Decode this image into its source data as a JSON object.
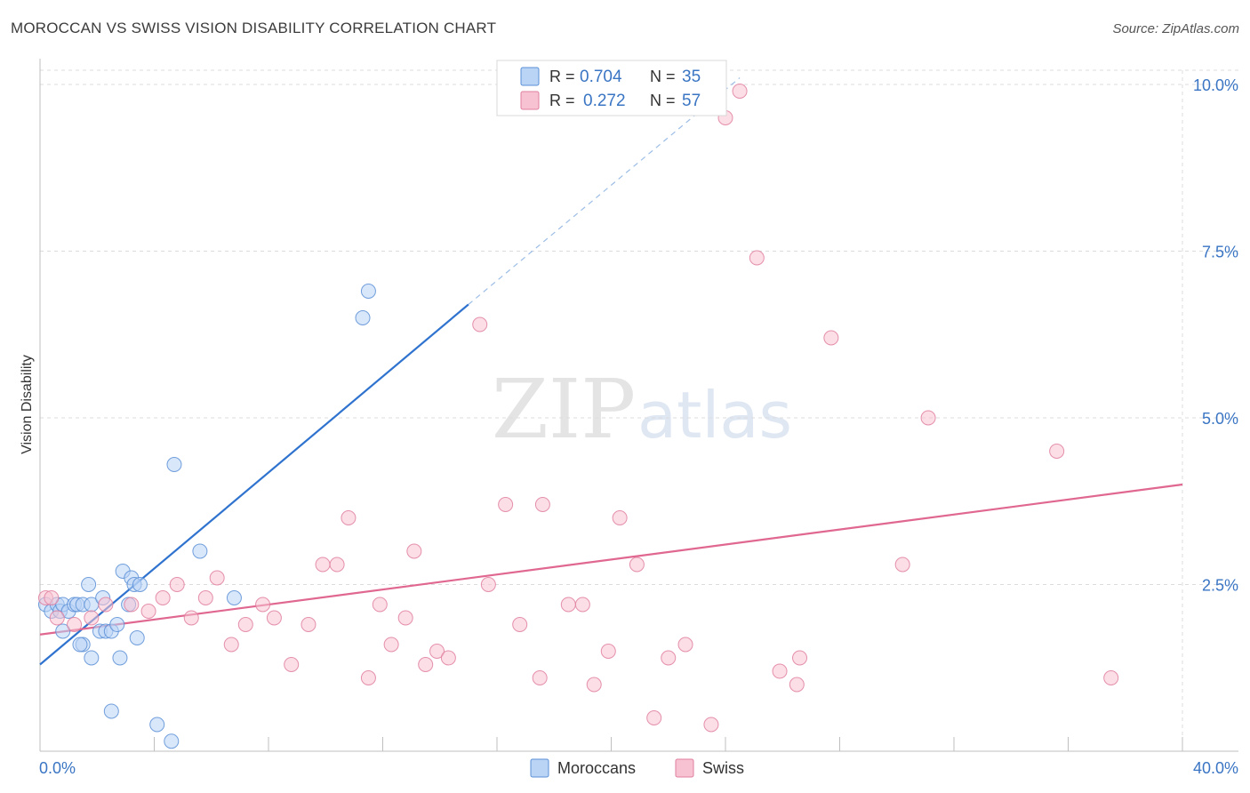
{
  "title": "MOROCCAN VS SWISS VISION DISABILITY CORRELATION CHART",
  "source": "Source: ZipAtlas.com",
  "watermark": {
    "zip": "ZIP",
    "atlas": "atlas"
  },
  "colors": {
    "moroccans_fill": "#b9d4f5",
    "moroccans_stroke": "#5b8fd6",
    "moroccans_line": "#2f73cf",
    "swiss_fill": "#f7c3d2",
    "swiss_stroke": "#e07f9f",
    "swiss_line": "#e0678f",
    "value_text": "#3a75c4"
  },
  "legend": {
    "rows": [
      {
        "r_label": "R =",
        "r_value": "0.704",
        "n_label": "N =",
        "n_value": "35"
      },
      {
        "r_label": "R =",
        "r_value": "0.272",
        "n_label": "N =",
        "n_value": "57"
      }
    ]
  },
  "bottom_legend": [
    "Moroccans",
    "Swiss"
  ],
  "chart_data": {
    "type": "scatter",
    "title": "MOROCCAN VS SWISS VISION DISABILITY CORRELATION CHART",
    "xlabel": "",
    "ylabel": "Vision Disability",
    "xlim": [
      0,
      40
    ],
    "ylim": [
      0,
      10
    ],
    "x_tick_labels": [
      "0.0%",
      "40.0%"
    ],
    "y_ticks": [
      2.5,
      5.0,
      7.5,
      10.0
    ],
    "y_tick_labels": [
      "2.5%",
      "5.0%",
      "7.5%",
      "10.0%"
    ],
    "grid": true,
    "legend_position": "top-center",
    "series": [
      {
        "name": "Moroccans",
        "r": 0.704,
        "n": 35,
        "trend": {
          "x": [
            0,
            15
          ],
          "y": [
            1.3,
            6.7
          ],
          "dashed_to": {
            "x": 24.5,
            "y": 10.1
          }
        },
        "points": [
          [
            0.2,
            2.2
          ],
          [
            0.4,
            2.1
          ],
          [
            0.6,
            2.2
          ],
          [
            0.7,
            2.1
          ],
          [
            0.8,
            2.2
          ],
          [
            1.0,
            2.1
          ],
          [
            1.2,
            2.2
          ],
          [
            1.3,
            2.2
          ],
          [
            1.5,
            2.2
          ],
          [
            0.8,
            1.8
          ],
          [
            1.5,
            1.6
          ],
          [
            1.4,
            1.6
          ],
          [
            1.8,
            1.4
          ],
          [
            1.7,
            2.5
          ],
          [
            1.8,
            2.2
          ],
          [
            2.1,
            1.8
          ],
          [
            2.2,
            2.3
          ],
          [
            2.3,
            1.8
          ],
          [
            2.5,
            1.8
          ],
          [
            2.7,
            1.9
          ],
          [
            2.8,
            1.4
          ],
          [
            2.9,
            2.7
          ],
          [
            3.2,
            2.6
          ],
          [
            3.3,
            2.5
          ],
          [
            3.5,
            2.5
          ],
          [
            3.4,
            1.7
          ],
          [
            3.1,
            2.2
          ],
          [
            2.5,
            0.6
          ],
          [
            4.1,
            0.4
          ],
          [
            4.6,
            0.15
          ],
          [
            4.7,
            4.3
          ],
          [
            5.6,
            3.0
          ],
          [
            6.8,
            2.3
          ],
          [
            11.3,
            6.5
          ],
          [
            11.5,
            6.9
          ]
        ]
      },
      {
        "name": "Swiss",
        "r": 0.272,
        "n": 57,
        "trend": {
          "x": [
            0,
            40
          ],
          "y": [
            1.75,
            4.0
          ]
        },
        "points": [
          [
            0.2,
            2.3
          ],
          [
            0.6,
            2.0
          ],
          [
            1.2,
            1.9
          ],
          [
            1.8,
            2.0
          ],
          [
            2.3,
            2.2
          ],
          [
            3.2,
            2.2
          ],
          [
            3.8,
            2.1
          ],
          [
            4.3,
            2.3
          ],
          [
            4.8,
            2.5
          ],
          [
            5.3,
            2.0
          ],
          [
            5.8,
            2.3
          ],
          [
            6.2,
            2.6
          ],
          [
            6.7,
            1.6
          ],
          [
            7.2,
            1.9
          ],
          [
            7.8,
            2.2
          ],
          [
            8.2,
            2.0
          ],
          [
            8.8,
            1.3
          ],
          [
            9.4,
            1.9
          ],
          [
            9.9,
            2.8
          ],
          [
            10.4,
            2.8
          ],
          [
            10.8,
            3.5
          ],
          [
            11.5,
            1.1
          ],
          [
            11.9,
            2.2
          ],
          [
            12.3,
            1.6
          ],
          [
            12.8,
            2.0
          ],
          [
            13.1,
            3.0
          ],
          [
            13.5,
            1.3
          ],
          [
            13.9,
            1.5
          ],
          [
            14.3,
            1.4
          ],
          [
            15.4,
            6.4
          ],
          [
            15.7,
            2.5
          ],
          [
            16.3,
            3.7
          ],
          [
            16.8,
            1.9
          ],
          [
            17.5,
            1.1
          ],
          [
            17.6,
            3.7
          ],
          [
            18.5,
            2.2
          ],
          [
            19.0,
            2.2
          ],
          [
            19.4,
            1.0
          ],
          [
            19.9,
            1.5
          ],
          [
            20.3,
            3.5
          ],
          [
            20.9,
            2.8
          ],
          [
            21.5,
            0.5
          ],
          [
            22.0,
            1.4
          ],
          [
            22.6,
            1.6
          ],
          [
            23.5,
            0.4
          ],
          [
            24.0,
            9.5
          ],
          [
            24.5,
            9.9
          ],
          [
            25.1,
            7.4
          ],
          [
            25.9,
            1.2
          ],
          [
            26.5,
            1.0
          ],
          [
            26.6,
            1.4
          ],
          [
            27.7,
            6.2
          ],
          [
            30.2,
            2.8
          ],
          [
            31.1,
            5.0
          ],
          [
            35.6,
            4.5
          ],
          [
            37.5,
            1.1
          ],
          [
            0.4,
            2.3
          ]
        ]
      }
    ]
  }
}
